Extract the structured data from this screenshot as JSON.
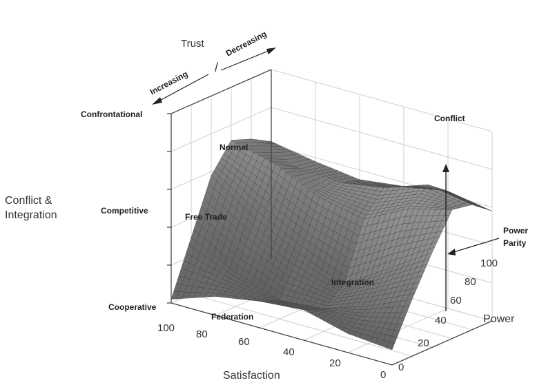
{
  "chart_data": {
    "type": "surface",
    "title": "",
    "z_axis": {
      "label": "Conflict & Integration",
      "label_lines": [
        "Conflict &",
        "Integration"
      ],
      "levels": [
        "Cooperative",
        "Competitive",
        "Confrontational"
      ]
    },
    "x_axis": {
      "label": "Satisfaction",
      "ticks": [
        "100",
        "80",
        "60",
        "40",
        "20",
        "0"
      ],
      "range": [
        100,
        0
      ]
    },
    "y_axis": {
      "label": "Power",
      "ticks": [
        "0",
        "20",
        "40",
        "60",
        "80",
        "100"
      ],
      "range": [
        0,
        100
      ]
    },
    "trust": {
      "title": "Trust",
      "left": "Increasing",
      "right": "Decreasing",
      "divider": "/"
    },
    "annotations": [
      "Normal",
      "Free Trade",
      "Conflict",
      "Integration",
      "Federation"
    ],
    "power_parity": {
      "lines": [
        "Power",
        "Parity"
      ],
      "at_power": 60
    },
    "surface_grid": {
      "satisfaction": [
        100,
        80,
        60,
        40,
        20,
        0
      ],
      "power": [
        0,
        20,
        40,
        60,
        80,
        100
      ],
      "z": [
        [
          0.02,
          0.3,
          0.58,
          0.72,
          0.68,
          0.62
        ],
        [
          0.1,
          0.18,
          0.42,
          0.66,
          0.6,
          0.58
        ],
        [
          0.14,
          0.1,
          0.3,
          0.55,
          0.58,
          0.55
        ],
        [
          0.16,
          0.12,
          0.2,
          0.5,
          0.62,
          0.58
        ],
        [
          0.1,
          0.2,
          0.35,
          0.62,
          0.7,
          0.62
        ],
        [
          0.08,
          0.3,
          0.5,
          0.68,
          0.66,
          0.58
        ]
      ]
    }
  }
}
